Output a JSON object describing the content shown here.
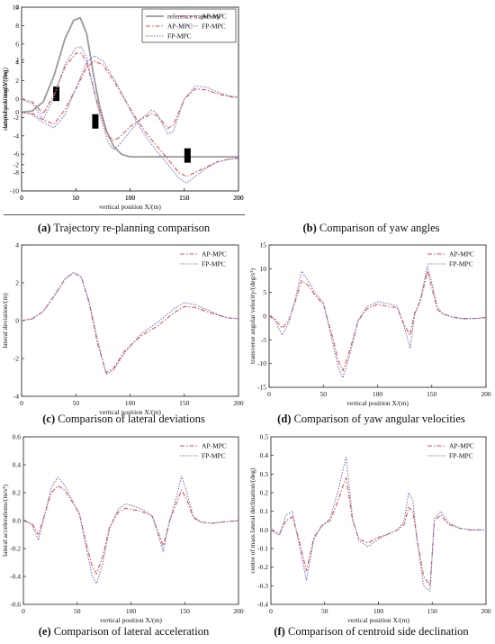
{
  "captions": [
    {
      "letter": "(a)",
      "text": " Trajectory re-planning comparison"
    },
    {
      "letter": "(b)",
      "text": " Comparison of yaw angles"
    },
    {
      "letter": "(c)",
      "text": " Comparison of lateral deviations"
    },
    {
      "letter": "(d)",
      "text": " Comparison of yaw angular velocities"
    },
    {
      "letter": "(e)",
      "text": " Comparison of lateral acceleration"
    },
    {
      "letter": "(f)",
      "text": " Comparison of centroid side declination"
    }
  ],
  "colors": {
    "ap": "#e0524f",
    "fp": "#6f78c9",
    "ref": "#9a9a9a",
    "obstacle": "#000000",
    "axis": "#333333"
  },
  "chart_data": [
    {
      "type": "line",
      "xlabel": "vertical position X/(m)",
      "ylabel": "lateral position Y/(m)",
      "xlim": [
        0,
        200
      ],
      "ylim": [
        -3,
        4
      ],
      "xticks": [
        0,
        50,
        100,
        150,
        200
      ],
      "yticks": [
        -2,
        0,
        2,
        4
      ],
      "legend": "top-right",
      "series": [
        {
          "name": "reference trajectory",
          "style": "ref",
          "x": [
            0,
            10,
            20,
            30,
            40,
            48,
            54,
            60,
            66,
            72,
            78,
            85,
            92,
            100,
            110,
            120,
            130,
            140,
            150,
            160,
            170,
            180,
            190,
            200
          ],
          "y": [
            0,
            0.05,
            0.4,
            1.4,
            2.8,
            3.5,
            3.6,
            3.0,
            1.5,
            0.2,
            -0.7,
            -1.3,
            -1.6,
            -1.7,
            -1.7,
            -1.7,
            -1.7,
            -1.7,
            -1.7,
            -1.7,
            -1.7,
            -1.7,
            -1.7,
            -1.7
          ]
        },
        {
          "name": "AP-MPC",
          "style": "ap",
          "x": [
            0,
            10,
            20,
            30,
            40,
            50,
            60,
            67,
            75,
            85,
            95,
            105,
            115,
            125,
            135,
            145,
            152,
            160,
            170,
            180,
            190,
            200
          ],
          "y": [
            0,
            -0.05,
            -0.3,
            -0.45,
            0.1,
            0.9,
            1.7,
            1.95,
            1.8,
            1.2,
            0.5,
            -0.2,
            -0.8,
            -1.3,
            -1.8,
            -2.3,
            -2.45,
            -2.3,
            -2.1,
            -1.9,
            -1.8,
            -1.75
          ]
        },
        {
          "name": "FP-MPC",
          "style": "fp",
          "x": [
            0,
            10,
            20,
            30,
            40,
            50,
            60,
            67,
            75,
            85,
            95,
            105,
            115,
            125,
            135,
            145,
            152,
            160,
            170,
            180,
            190,
            200
          ],
          "y": [
            0,
            -0.1,
            -0.4,
            -0.6,
            -0.1,
            0.9,
            1.9,
            2.15,
            1.95,
            1.3,
            0.5,
            -0.3,
            -0.95,
            -1.5,
            -2.0,
            -2.5,
            -2.7,
            -2.45,
            -2.15,
            -1.9,
            -1.8,
            -1.75
          ]
        }
      ],
      "obstacles": [
        {
          "x": 32,
          "y": 0.7
        },
        {
          "x": 68,
          "y": -0.35
        },
        {
          "x": 153,
          "y": -1.65
        }
      ]
    },
    {
      "type": "line",
      "xlabel": "",
      "ylabel": "swept-back angle/(deg)",
      "xlim": [
        0,
        200
      ],
      "ylim": [
        -10,
        10
      ],
      "xticks": [
        0,
        50,
        100,
        150,
        200
      ],
      "yticks": [
        -10,
        -8,
        -6,
        -4,
        -2,
        0,
        2,
        4,
        6,
        8,
        10
      ],
      "legend": "top-right",
      "series": [
        {
          "name": "AP-MPC",
          "style": "ap",
          "x": [
            0,
            10,
            20,
            30,
            40,
            50,
            55,
            60,
            70,
            80,
            85,
            90,
            100,
            110,
            120,
            125,
            130,
            135,
            140,
            150,
            160,
            170,
            180,
            190,
            200
          ],
          "y": [
            0,
            -0.3,
            -1.6,
            0.5,
            3.5,
            5.0,
            5.0,
            4.0,
            -0.5,
            -4.0,
            -4.5,
            -4.2,
            -3.0,
            -2.2,
            -1.6,
            -1.8,
            -2.5,
            -3.2,
            -2.8,
            0,
            1.1,
            1.0,
            0.6,
            0.3,
            0.1
          ]
        },
        {
          "name": "FP-MPC",
          "style": "fp",
          "x": [
            0,
            10,
            20,
            30,
            40,
            50,
            55,
            60,
            70,
            80,
            85,
            90,
            100,
            110,
            120,
            125,
            130,
            135,
            140,
            150,
            160,
            170,
            180,
            190,
            200
          ],
          "y": [
            0,
            -0.5,
            -2.2,
            0.2,
            3.8,
            5.6,
            5.7,
            4.5,
            -0.8,
            -4.8,
            -5.5,
            -5.0,
            -3.5,
            -2.2,
            -1.2,
            -1.6,
            -2.8,
            -3.8,
            -3.5,
            0,
            1.4,
            1.3,
            0.8,
            0.4,
            0.2
          ]
        }
      ]
    },
    {
      "type": "line",
      "xlabel": "vertical position X/(m)",
      "ylabel": "lateral deviation/(m)",
      "xlim": [
        0,
        200
      ],
      "ylim": [
        -4,
        4
      ],
      "xticks": [
        0,
        50,
        100,
        150,
        200
      ],
      "yticks": [
        -4,
        -2,
        0,
        2,
        4
      ],
      "legend": "top-right",
      "series": [
        {
          "name": "AP-MPC",
          "style": "ap",
          "x": [
            0,
            10,
            20,
            30,
            40,
            48,
            55,
            62,
            70,
            78,
            85,
            95,
            110,
            125,
            140,
            150,
            160,
            170,
            180,
            190,
            200
          ],
          "y": [
            0,
            0.1,
            0.5,
            1.3,
            2.2,
            2.55,
            2.3,
            1.0,
            -1.2,
            -2.75,
            -2.5,
            -1.6,
            -0.8,
            -0.3,
            0.4,
            0.75,
            0.7,
            0.5,
            0.3,
            0.15,
            0.1
          ]
        },
        {
          "name": "FP-MPC",
          "style": "fp",
          "x": [
            0,
            10,
            20,
            30,
            40,
            48,
            55,
            62,
            70,
            78,
            85,
            95,
            110,
            125,
            140,
            150,
            160,
            170,
            180,
            190,
            200
          ],
          "y": [
            0,
            0.1,
            0.5,
            1.3,
            2.2,
            2.55,
            2.3,
            1.1,
            -1.0,
            -2.85,
            -2.6,
            -1.7,
            -0.7,
            -0.1,
            0.6,
            0.95,
            0.85,
            0.6,
            0.35,
            0.15,
            0.1
          ]
        }
      ]
    },
    {
      "type": "line",
      "xlabel": "vertical position X/(m)",
      "ylabel": "transverse angular velocity/(deg/s²)",
      "xlim": [
        0,
        200
      ],
      "ylim": [
        -15,
        15
      ],
      "xticks": [
        0,
        50,
        100,
        150,
        200
      ],
      "yticks": [
        -15,
        -10,
        -5,
        0,
        5,
        10,
        15
      ],
      "legend": "top-right",
      "series": [
        {
          "name": "AP-MPC",
          "style": "ap",
          "x": [
            0,
            5,
            12,
            18,
            24,
            30,
            36,
            42,
            50,
            58,
            64,
            68,
            74,
            82,
            90,
            100,
            110,
            118,
            125,
            130,
            134,
            140,
            146,
            150,
            155,
            160,
            170,
            180,
            190,
            200
          ],
          "y": [
            0,
            -0.5,
            -2.5,
            -1.0,
            3.0,
            7.5,
            6.5,
            4.5,
            2.5,
            -4.0,
            -9.5,
            -11.5,
            -7.5,
            -1.0,
            1.5,
            2.5,
            2.0,
            1.8,
            -2.0,
            -4.0,
            0.5,
            3.5,
            9.5,
            6.0,
            1.5,
            0.5,
            -0.2,
            -0.5,
            -0.5,
            -0.3
          ]
        },
        {
          "name": "FP-MPC",
          "style": "fp",
          "x": [
            0,
            5,
            12,
            18,
            24,
            30,
            36,
            42,
            50,
            58,
            64,
            68,
            74,
            82,
            90,
            100,
            110,
            118,
            125,
            130,
            134,
            140,
            146,
            150,
            155,
            160,
            170,
            180,
            190,
            200
          ],
          "y": [
            0,
            -0.8,
            -4.0,
            -1.5,
            3.5,
            9.5,
            7.5,
            5.0,
            2.8,
            -5.0,
            -11.0,
            -13.0,
            -8.5,
            -1.0,
            2.0,
            3.0,
            2.6,
            2.2,
            -2.5,
            -6.8,
            0.0,
            4.0,
            10.5,
            7.0,
            2.0,
            0.5,
            -0.3,
            -0.6,
            -0.5,
            -0.3
          ]
        }
      ]
    },
    {
      "type": "line",
      "xlabel": "vertical position X/(m)",
      "ylabel": "lateral accelerations/(m/s²)",
      "xlim": [
        0,
        200
      ],
      "ylim": [
        -0.6,
        0.6
      ],
      "xticks": [
        0,
        50,
        100,
        150,
        200
      ],
      "yticks": [
        -0.6,
        -0.4,
        -0.2,
        0.0,
        0.2,
        0.4,
        0.6
      ],
      "legend": "top-right",
      "series": [
        {
          "name": "AP-MPC",
          "style": "ap",
          "x": [
            0,
            8,
            14,
            20,
            26,
            32,
            38,
            45,
            52,
            58,
            64,
            68,
            74,
            80,
            88,
            95,
            100,
            108,
            115,
            120,
            126,
            130,
            136,
            142,
            147,
            152,
            158,
            165,
            175,
            185,
            200
          ],
          "y": [
            0,
            -0.02,
            -0.1,
            0.05,
            0.2,
            0.25,
            0.22,
            0.14,
            0.05,
            -0.15,
            -0.33,
            -0.38,
            -0.25,
            -0.05,
            0.06,
            0.09,
            0.08,
            0.07,
            0.05,
            0.03,
            -0.1,
            -0.18,
            0.0,
            0.12,
            0.22,
            0.15,
            0.02,
            -0.01,
            -0.02,
            -0.01,
            0.0
          ]
        },
        {
          "name": "FP-MPC",
          "style": "fp",
          "x": [
            0,
            8,
            14,
            20,
            26,
            32,
            38,
            45,
            52,
            58,
            64,
            68,
            74,
            80,
            88,
            95,
            100,
            108,
            115,
            120,
            126,
            130,
            136,
            142,
            147,
            152,
            158,
            165,
            175,
            185,
            200
          ],
          "y": [
            0,
            -0.03,
            -0.14,
            0.05,
            0.24,
            0.31,
            0.26,
            0.15,
            0.05,
            -0.18,
            -0.4,
            -0.45,
            -0.3,
            -0.06,
            0.08,
            0.12,
            0.11,
            0.09,
            0.06,
            0.03,
            -0.12,
            -0.22,
            0.0,
            0.16,
            0.32,
            0.2,
            0.03,
            -0.01,
            -0.02,
            -0.01,
            0.0
          ]
        }
      ]
    },
    {
      "type": "line",
      "xlabel": "vertical position X/(m)",
      "ylabel": "centre of mass lateral declination/(deg)",
      "xlim": [
        0,
        200
      ],
      "ylim": [
        -0.4,
        0.5
      ],
      "xticks": [
        0,
        50,
        100,
        150,
        200
      ],
      "yticks": [
        -0.4,
        -0.3,
        -0.2,
        -0.1,
        0.0,
        0.1,
        0.2,
        0.3,
        0.4,
        0.5
      ],
      "legend": "top-right",
      "series": [
        {
          "name": "AP-MPC",
          "style": "ap",
          "x": [
            0,
            8,
            14,
            20,
            26,
            33,
            40,
            47,
            55,
            62,
            66,
            70,
            76,
            82,
            90,
            100,
            110,
            118,
            124,
            128,
            132,
            136,
            142,
            148,
            152,
            158,
            165,
            175,
            185,
            200
          ],
          "y": [
            0,
            -0.02,
            0.05,
            0.07,
            -0.05,
            -0.22,
            -0.04,
            0.02,
            0.05,
            0.15,
            0.22,
            0.28,
            0.05,
            -0.05,
            -0.07,
            -0.04,
            -0.02,
            0.0,
            0.03,
            0.12,
            0.1,
            -0.05,
            -0.25,
            -0.3,
            0.05,
            0.08,
            0.03,
            0.01,
            0.0,
            0.0
          ]
        },
        {
          "name": "FP-MPC",
          "style": "fp",
          "x": [
            0,
            8,
            14,
            20,
            26,
            33,
            40,
            47,
            55,
            62,
            66,
            70,
            76,
            82,
            90,
            100,
            110,
            118,
            124,
            128,
            132,
            136,
            142,
            148,
            152,
            158,
            165,
            175,
            185,
            200
          ],
          "y": [
            0,
            -0.03,
            0.08,
            0.1,
            -0.07,
            -0.27,
            -0.05,
            0.02,
            0.06,
            0.2,
            0.3,
            0.39,
            0.06,
            -0.06,
            -0.09,
            -0.05,
            -0.02,
            0.0,
            0.05,
            0.2,
            0.16,
            -0.06,
            -0.3,
            -0.33,
            0.06,
            0.1,
            0.04,
            0.01,
            0.0,
            0.0
          ]
        }
      ]
    }
  ]
}
